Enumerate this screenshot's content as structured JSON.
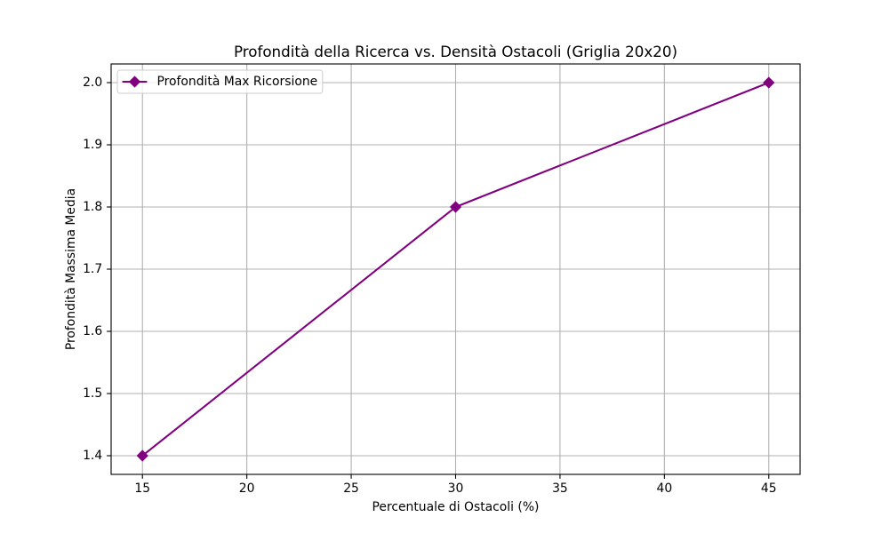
{
  "chart_data": {
    "type": "line",
    "title": "Profondità della Ricerca vs. Densità Ostacoli (Griglia 20x20)",
    "xlabel": "Percentuale di Ostacoli (%)",
    "ylabel": "Profondità Massima Media",
    "x": [
      15,
      30,
      45
    ],
    "series": [
      {
        "name": "Profondità Max Ricorsione",
        "values": [
          1.4,
          1.8,
          2.0
        ],
        "color": "#800080",
        "marker": "diamond"
      }
    ],
    "xlim": [
      13.5,
      46.5
    ],
    "ylim": [
      1.37,
      2.03
    ],
    "xticks": [
      15,
      20,
      25,
      30,
      35,
      40,
      45
    ],
    "xtick_labels": [
      "15",
      "20",
      "25",
      "30",
      "35",
      "40",
      "45"
    ],
    "yticks": [
      1.4,
      1.5,
      1.6,
      1.7,
      1.8,
      1.9,
      2.0
    ],
    "ytick_labels": [
      "1.4",
      "1.5",
      "1.6",
      "1.7",
      "1.8",
      "1.9",
      "2.0"
    ],
    "grid": true,
    "grid_color": "#b0b0b0",
    "legend_position": "upper left"
  }
}
